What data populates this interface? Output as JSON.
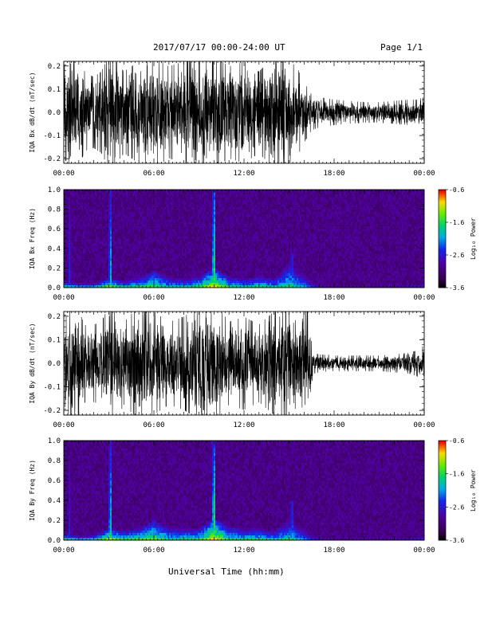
{
  "header": {
    "title": "2017/07/17  00:00-24:00 UT",
    "page": "Page 1/1"
  },
  "footer": {
    "xlabel": "Universal Time (hh:mm)"
  },
  "colors": {
    "trace": "#000000",
    "spectrogram_background": "#2a0f3a"
  },
  "chart_data": [
    {
      "type": "line",
      "ylabel": "IQA Bx dB/dt (nT/sec)",
      "ylim": [
        -0.22,
        0.22
      ],
      "y_ticks": [
        "-0.2",
        "-0.1",
        "0.0",
        "0.1",
        "0.2"
      ],
      "xlim_hours": [
        0,
        24
      ],
      "x_ticks": [
        "00:00",
        "06:00",
        "12:00",
        "18:00",
        "00:00"
      ],
      "envelope": {
        "hours": [
          0,
          0.5,
          1,
          1.5,
          2,
          2.5,
          3,
          3.5,
          4,
          5,
          6,
          7,
          8,
          9,
          9.5,
          10,
          10.5,
          11,
          12,
          13,
          14,
          15,
          15.5,
          16,
          16.5,
          17,
          18,
          19,
          20,
          21,
          22,
          23,
          23.5,
          24
        ],
        "amplitude": [
          0.18,
          0.22,
          0.2,
          0.15,
          0.14,
          0.16,
          0.22,
          0.2,
          0.16,
          0.2,
          0.22,
          0.18,
          0.2,
          0.22,
          0.22,
          0.22,
          0.2,
          0.18,
          0.2,
          0.16,
          0.22,
          0.2,
          0.18,
          0.12,
          0.07,
          0.06,
          0.05,
          0.045,
          0.04,
          0.04,
          0.045,
          0.05,
          0.05,
          0.06
        ]
      }
    },
    {
      "type": "heatmap",
      "ylabel": "IQA Bx Freq (Hz)",
      "ylim": [
        0.0,
        1.0
      ],
      "y_ticks": [
        "0.0",
        "0.2",
        "0.4",
        "0.6",
        "0.8",
        "1.0"
      ],
      "xlim_hours": [
        0,
        24
      ],
      "x_ticks": [
        "00:00",
        "06:00",
        "12:00",
        "18:00",
        "00:00"
      ],
      "colorbar": {
        "label": "Log₁₀ Power",
        "ticks": [
          "-0.6",
          "-1.6",
          "-2.6",
          "-3.6"
        ],
        "range": [
          -3.6,
          -0.6
        ]
      },
      "spikes": [
        {
          "hour": 0.4,
          "height": 0.9,
          "intensity": 0.55
        },
        {
          "hour": 3.1,
          "height": 1.0,
          "intensity": 0.8
        },
        {
          "hour": 10.0,
          "height": 1.0,
          "intensity": 1.0
        },
        {
          "hour": 15.2,
          "height": 0.35,
          "intensity": 0.6
        }
      ],
      "low_freq_activity": {
        "hours": [
          0,
          1,
          2,
          3,
          4,
          5,
          6,
          7,
          8,
          9,
          10,
          11,
          12,
          13,
          14,
          15,
          16,
          17,
          18,
          20,
          22,
          24
        ],
        "height": [
          0.08,
          0.06,
          0.05,
          0.1,
          0.08,
          0.1,
          0.18,
          0.12,
          0.1,
          0.12,
          0.2,
          0.12,
          0.1,
          0.12,
          0.1,
          0.25,
          0.15,
          0.04,
          0.03,
          0.03,
          0.03,
          0.04
        ],
        "intensity": [
          0.6,
          0.5,
          0.5,
          0.8,
          0.6,
          0.7,
          0.75,
          0.6,
          0.6,
          0.7,
          0.95,
          0.7,
          0.6,
          0.7,
          0.6,
          0.7,
          0.55,
          0.3,
          0.25,
          0.25,
          0.25,
          0.35
        ]
      }
    },
    {
      "type": "line",
      "ylabel": "IQA By dB/dt (nT/sec)",
      "ylim": [
        -0.22,
        0.22
      ],
      "y_ticks": [
        "-0.2",
        "-0.1",
        "0.0",
        "0.1",
        "0.2"
      ],
      "xlim_hours": [
        0,
        24
      ],
      "x_ticks": [
        "00:00",
        "06:00",
        "12:00",
        "18:00",
        "00:00"
      ],
      "envelope": {
        "hours": [
          0,
          0.5,
          1,
          1.5,
          2,
          2.5,
          3,
          3.5,
          4,
          5,
          6,
          7,
          8,
          9,
          9.5,
          10,
          10.5,
          11,
          12,
          13,
          14,
          15,
          15.5,
          16,
          16.4,
          16.6,
          17,
          18,
          19,
          20,
          21,
          22,
          23,
          23.5,
          24
        ],
        "amplitude": [
          0.16,
          0.22,
          0.2,
          0.14,
          0.15,
          0.16,
          0.22,
          0.22,
          0.16,
          0.22,
          0.2,
          0.16,
          0.18,
          0.22,
          0.22,
          0.22,
          0.2,
          0.16,
          0.18,
          0.15,
          0.2,
          0.22,
          0.22,
          0.22,
          0.2,
          0.04,
          0.035,
          0.03,
          0.03,
          0.03,
          0.03,
          0.035,
          0.04,
          0.05,
          0.07
        ]
      }
    },
    {
      "type": "heatmap",
      "ylabel": "IQA By Freq (Hz)",
      "ylim": [
        0.0,
        1.0
      ],
      "y_ticks": [
        "0.0",
        "0.2",
        "0.4",
        "0.6",
        "0.8",
        "1.0"
      ],
      "xlim_hours": [
        0,
        24
      ],
      "x_ticks": [
        "00:00",
        "06:00",
        "12:00",
        "18:00",
        "00:00"
      ],
      "colorbar": {
        "label": "Log₁₀ Power",
        "ticks": [
          "-0.6",
          "-1.6",
          "-2.6",
          "-3.6"
        ],
        "range": [
          -3.6,
          -0.6
        ]
      },
      "spikes": [
        {
          "hour": 0.4,
          "height": 0.85,
          "intensity": 0.5
        },
        {
          "hour": 3.1,
          "height": 1.0,
          "intensity": 0.85
        },
        {
          "hour": 10.0,
          "height": 1.0,
          "intensity": 1.0
        },
        {
          "hour": 15.2,
          "height": 0.4,
          "intensity": 0.6
        }
      ],
      "low_freq_activity": {
        "hours": [
          0,
          1,
          2,
          3,
          4,
          5,
          6,
          7,
          8,
          9,
          10,
          11,
          12,
          13,
          14,
          15,
          16,
          17,
          18,
          20,
          22,
          24
        ],
        "height": [
          0.08,
          0.06,
          0.06,
          0.12,
          0.1,
          0.12,
          0.2,
          0.14,
          0.12,
          0.12,
          0.22,
          0.14,
          0.12,
          0.12,
          0.1,
          0.2,
          0.12,
          0.04,
          0.03,
          0.03,
          0.03,
          0.04
        ],
        "intensity": [
          0.65,
          0.5,
          0.55,
          0.85,
          0.7,
          0.75,
          0.8,
          0.65,
          0.65,
          0.7,
          0.95,
          0.7,
          0.65,
          0.7,
          0.6,
          0.7,
          0.5,
          0.3,
          0.25,
          0.25,
          0.25,
          0.35
        ]
      }
    }
  ]
}
